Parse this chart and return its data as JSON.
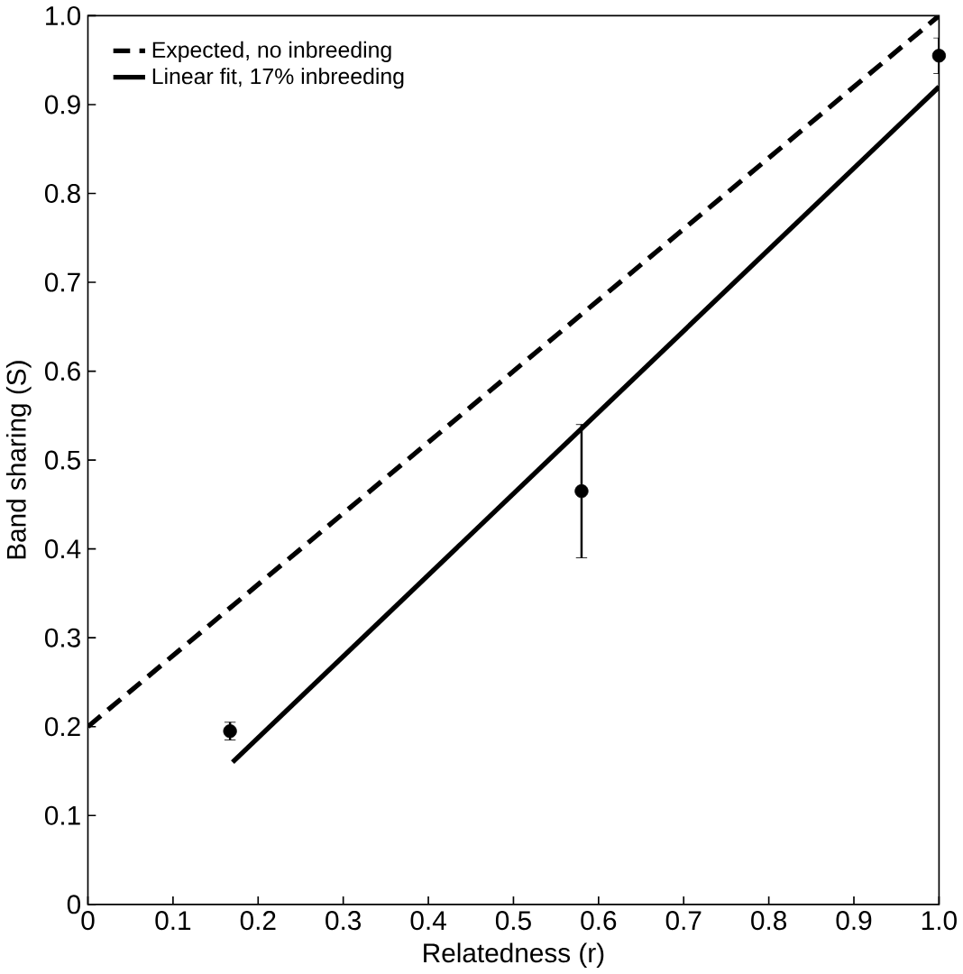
{
  "chart_data": {
    "type": "line",
    "xlabel": "Relatedness (r)",
    "ylabel": "Band sharing (S)",
    "xlim": [
      0,
      1.0
    ],
    "ylim": [
      0,
      1.0
    ],
    "xticks": [
      0,
      0.1,
      0.2,
      0.3,
      0.4,
      0.5,
      0.6,
      0.7,
      0.8,
      0.9,
      {
        "value": 1.0,
        "label": "1.0"
      }
    ],
    "yticks": [
      0,
      0.1,
      0.2,
      0.3,
      0.4,
      0.5,
      0.6,
      0.7,
      0.8,
      0.9,
      {
        "value": 1.0,
        "label": "1.0"
      }
    ],
    "legend": "top left",
    "series": [
      {
        "name": "Expected, no inbreeding",
        "marker": "none",
        "line_style": "dashed",
        "color": "#000000",
        "x": [
          0,
          1.0
        ],
        "values": [
          0.2,
          1.0
        ]
      },
      {
        "name": "Linear fit, 17% inbreeding",
        "marker": "none",
        "line_style": "solid",
        "color": "#000000",
        "x": [
          0.17,
          1.0
        ],
        "values": [
          0.16,
          0.92
        ]
      },
      {
        "type": "scatter",
        "marker": "circle",
        "color": "#000000",
        "x": [
          0.167,
          0.58,
          1.0
        ],
        "values": [
          0.195,
          0.465,
          0.955
        ],
        "errors": [
          0.01,
          [
            0.39,
            0.54
          ],
          0.02
        ]
      }
    ]
  }
}
